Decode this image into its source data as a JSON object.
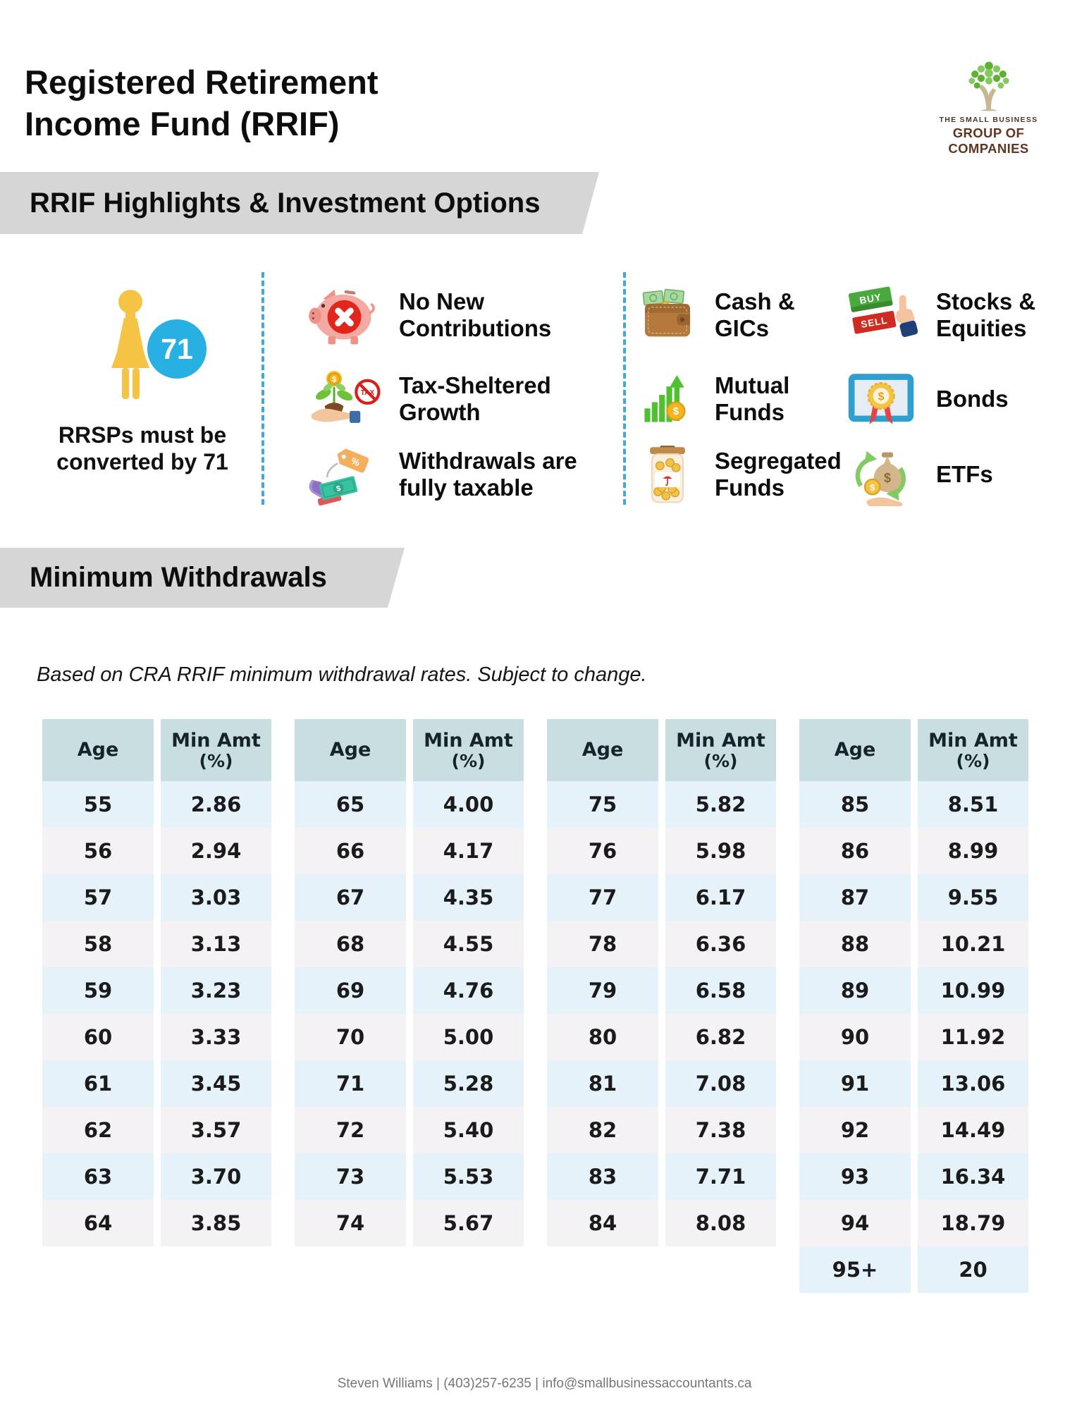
{
  "header": {
    "title_line1": "Registered Retirement",
    "title_line2": "Income Fund (RRIF)",
    "logo_icon": "tree-icon",
    "logo_line1": "THE SMALL BUSINESS",
    "logo_line2": "GROUP OF COMPANIES"
  },
  "banners": {
    "highlights": "RRIF Highlights & Investment Options",
    "min_withdrawals": "Minimum Withdrawals"
  },
  "conversion": {
    "icon": "retiree-woman-icon",
    "badge": "71",
    "caption_line1": "RRSPs must be",
    "caption_line2": "converted by 71"
  },
  "features": [
    {
      "icon": "piggy-bank-blocked-icon",
      "line1": "No New",
      "line2": "Contributions"
    },
    {
      "icon": "tax-sheltered-plant-icon",
      "line1": "Tax-Sheltered",
      "line2": "Growth"
    },
    {
      "icon": "taxable-withdrawal-icon",
      "line1": "Withdrawals are",
      "line2": "fully taxable"
    }
  ],
  "investments": [
    {
      "icon": "wallet-cash-icon",
      "line1": "Cash &",
      "line2": "GICs"
    },
    {
      "icon": "growth-chart-icon",
      "line1": "Mutual",
      "line2": "Funds"
    },
    {
      "icon": "coin-jar-icon",
      "line1": "Segregated",
      "line2": "Funds"
    },
    {
      "icon": "buy-sell-tags-icon",
      "line1": "Stocks &",
      "line2": "Equities"
    },
    {
      "icon": "bond-certificate-icon",
      "line1": "Bonds",
      "line2": ""
    },
    {
      "icon": "money-bag-exchange-icon",
      "line1": "ETFs",
      "line2": ""
    }
  ],
  "note": "Based on CRA RRIF minimum withdrawal rates. Subject to change.",
  "table": {
    "age_header": "Age",
    "min_header_line1": "Min Amt",
    "min_header_line2": "(%)",
    "groups": [
      {
        "rows": [
          [
            "55",
            "2.86"
          ],
          [
            "56",
            "2.94"
          ],
          [
            "57",
            "3.03"
          ],
          [
            "58",
            "3.13"
          ],
          [
            "59",
            "3.23"
          ],
          [
            "60",
            "3.33"
          ],
          [
            "61",
            "3.45"
          ],
          [
            "62",
            "3.57"
          ],
          [
            "63",
            "3.70"
          ],
          [
            "64",
            "3.85"
          ]
        ]
      },
      {
        "rows": [
          [
            "65",
            "4.00"
          ],
          [
            "66",
            "4.17"
          ],
          [
            "67",
            "4.35"
          ],
          [
            "68",
            "4.55"
          ],
          [
            "69",
            "4.76"
          ],
          [
            "70",
            "5.00"
          ],
          [
            "71",
            "5.28"
          ],
          [
            "72",
            "5.40"
          ],
          [
            "73",
            "5.53"
          ],
          [
            "74",
            "5.67"
          ]
        ]
      },
      {
        "rows": [
          [
            "75",
            "5.82"
          ],
          [
            "76",
            "5.98"
          ],
          [
            "77",
            "6.17"
          ],
          [
            "78",
            "6.36"
          ],
          [
            "79",
            "6.58"
          ],
          [
            "80",
            "6.82"
          ],
          [
            "81",
            "7.08"
          ],
          [
            "82",
            "7.38"
          ],
          [
            "83",
            "7.71"
          ],
          [
            "84",
            "8.08"
          ]
        ]
      },
      {
        "rows": [
          [
            "85",
            "8.51"
          ],
          [
            "86",
            "8.99"
          ],
          [
            "87",
            "9.55"
          ],
          [
            "88",
            "10.21"
          ],
          [
            "89",
            "10.99"
          ],
          [
            "90",
            "11.92"
          ],
          [
            "91",
            "13.06"
          ],
          [
            "92",
            "14.49"
          ],
          [
            "93",
            "16.34"
          ],
          [
            "94",
            "18.79"
          ],
          [
            "95+",
            "20"
          ]
        ]
      }
    ]
  },
  "footer": "Steven Williams | (403)257-6235 | info@smallbusinessaccountants.ca",
  "colors": {
    "banner_gray": "#d6d6d6",
    "table_header_teal": "#c9dee1",
    "row_blue": "#e6f2fa",
    "row_lavender": "#f5f2f6",
    "divider_blue": "#3fa9dc",
    "badge_blue": "#29b0e3",
    "figure_yellow": "#f6c445"
  }
}
